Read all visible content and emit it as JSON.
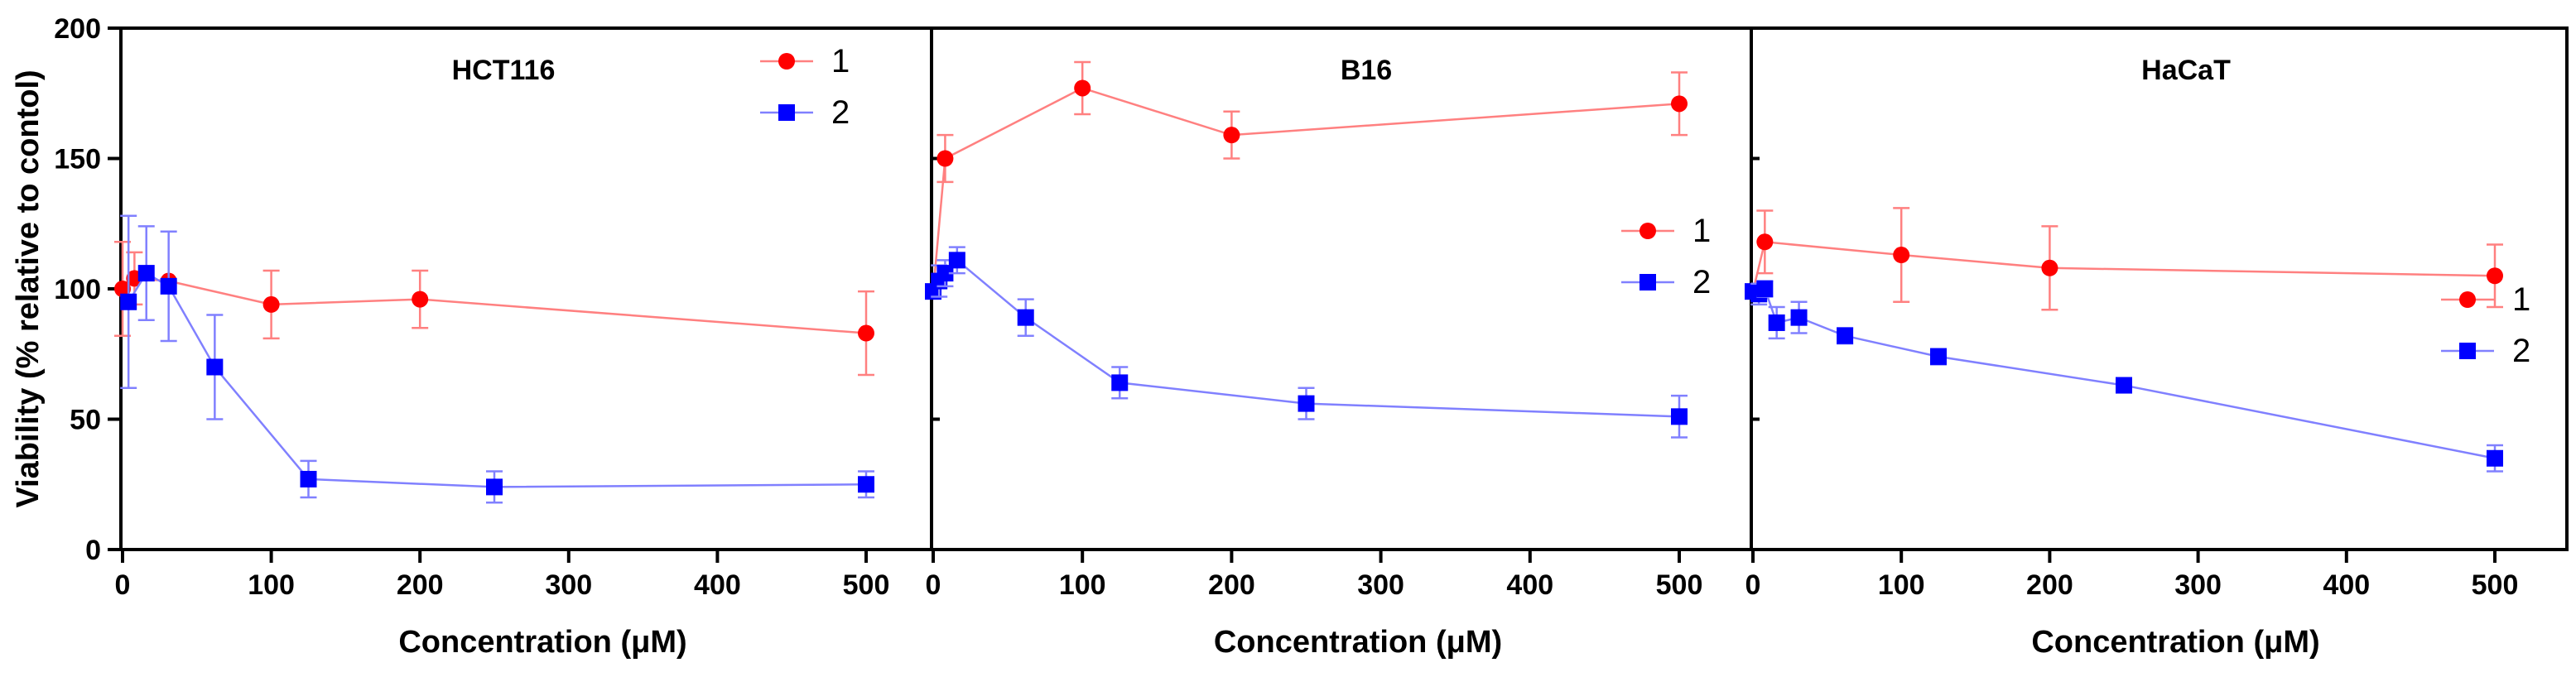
{
  "chart_data": {
    "type": "line",
    "y_axis": {
      "label": "Viability (% relative to contol)",
      "range": [
        0,
        200
      ],
      "ticks": [
        0,
        50,
        100,
        150,
        200
      ],
      "tick_labels": [
        "0",
        "50",
        "100",
        "150",
        "200"
      ]
    },
    "x_axis": {
      "label": "Concentration  (μM)",
      "range": [
        0,
        550
      ],
      "ticks": [
        0,
        100,
        200,
        300,
        400,
        500
      ],
      "tick_labels": [
        "0",
        "100",
        "200",
        "300",
        "400",
        "500"
      ]
    },
    "colors": {
      "series1": "#ff0000",
      "series2": "#0000ff",
      "axis": "#000000"
    },
    "panels": [
      {
        "title": "HCT116",
        "legend_position": "top-right",
        "series": [
          {
            "name": "1",
            "marker": "circle",
            "points": [
              {
                "x": 0,
                "y": 100,
                "err": 18
              },
              {
                "x": 8,
                "y": 104,
                "err": 10
              },
              {
                "x": 31,
                "y": 103,
                "err": 0
              },
              {
                "x": 100,
                "y": 94,
                "err": 13
              },
              {
                "x": 200,
                "y": 96,
                "err": 11
              },
              {
                "x": 500,
                "y": 83,
                "err": 16
              }
            ]
          },
          {
            "name": "2",
            "marker": "square",
            "points": [
              {
                "x": 4,
                "y": 95,
                "err": 33
              },
              {
                "x": 16,
                "y": 106,
                "err": 18
              },
              {
                "x": 31,
                "y": 101,
                "err": 21
              },
              {
                "x": 62,
                "y": 70,
                "err": 20
              },
              {
                "x": 125,
                "y": 27,
                "err": 7
              },
              {
                "x": 250,
                "y": 24,
                "err": 6
              },
              {
                "x": 500,
                "y": 25,
                "err": 5
              }
            ]
          }
        ]
      },
      {
        "title": "B16",
        "legend_position": "center-right",
        "series": [
          {
            "name": "1",
            "marker": "circle",
            "points": [
              {
                "x": 0,
                "y": 99,
                "err": 0
              },
              {
                "x": 8,
                "y": 150,
                "err": 9
              },
              {
                "x": 100,
                "y": 177,
                "err": 10
              },
              {
                "x": 200,
                "y": 159,
                "err": 9
              },
              {
                "x": 500,
                "y": 171,
                "err": 12
              }
            ]
          },
          {
            "name": "2",
            "marker": "square",
            "points": [
              {
                "x": 0,
                "y": 99,
                "err": 0
              },
              {
                "x": 4,
                "y": 103,
                "err": 6
              },
              {
                "x": 8,
                "y": 106,
                "err": 5
              },
              {
                "x": 16,
                "y": 111,
                "err": 5
              },
              {
                "x": 62,
                "y": 89,
                "err": 7
              },
              {
                "x": 125,
                "y": 64,
                "err": 6
              },
              {
                "x": 250,
                "y": 56,
                "err": 6
              },
              {
                "x": 500,
                "y": 51,
                "err": 8
              }
            ]
          }
        ]
      },
      {
        "title": "HaCaT",
        "legend_position": "center-right",
        "series": [
          {
            "name": "1",
            "marker": "circle",
            "points": [
              {
                "x": 0,
                "y": 99,
                "err": 0
              },
              {
                "x": 8,
                "y": 118,
                "err": 12
              },
              {
                "x": 100,
                "y": 113,
                "err": 18
              },
              {
                "x": 200,
                "y": 108,
                "err": 16
              },
              {
                "x": 500,
                "y": 105,
                "err": 12
              }
            ]
          },
          {
            "name": "2",
            "marker": "square",
            "points": [
              {
                "x": 0,
                "y": 99,
                "err": 0
              },
              {
                "x": 4,
                "y": 98,
                "err": 4
              },
              {
                "x": 8,
                "y": 100,
                "err": 3
              },
              {
                "x": 16,
                "y": 87,
                "err": 6
              },
              {
                "x": 31,
                "y": 89,
                "err": 6
              },
              {
                "x": 62,
                "y": 82,
                "err": 3
              },
              {
                "x": 125,
                "y": 74,
                "err": 3
              },
              {
                "x": 250,
                "y": 63,
                "err": 2
              },
              {
                "x": 500,
                "y": 35,
                "err": 5
              }
            ]
          }
        ]
      }
    ]
  }
}
